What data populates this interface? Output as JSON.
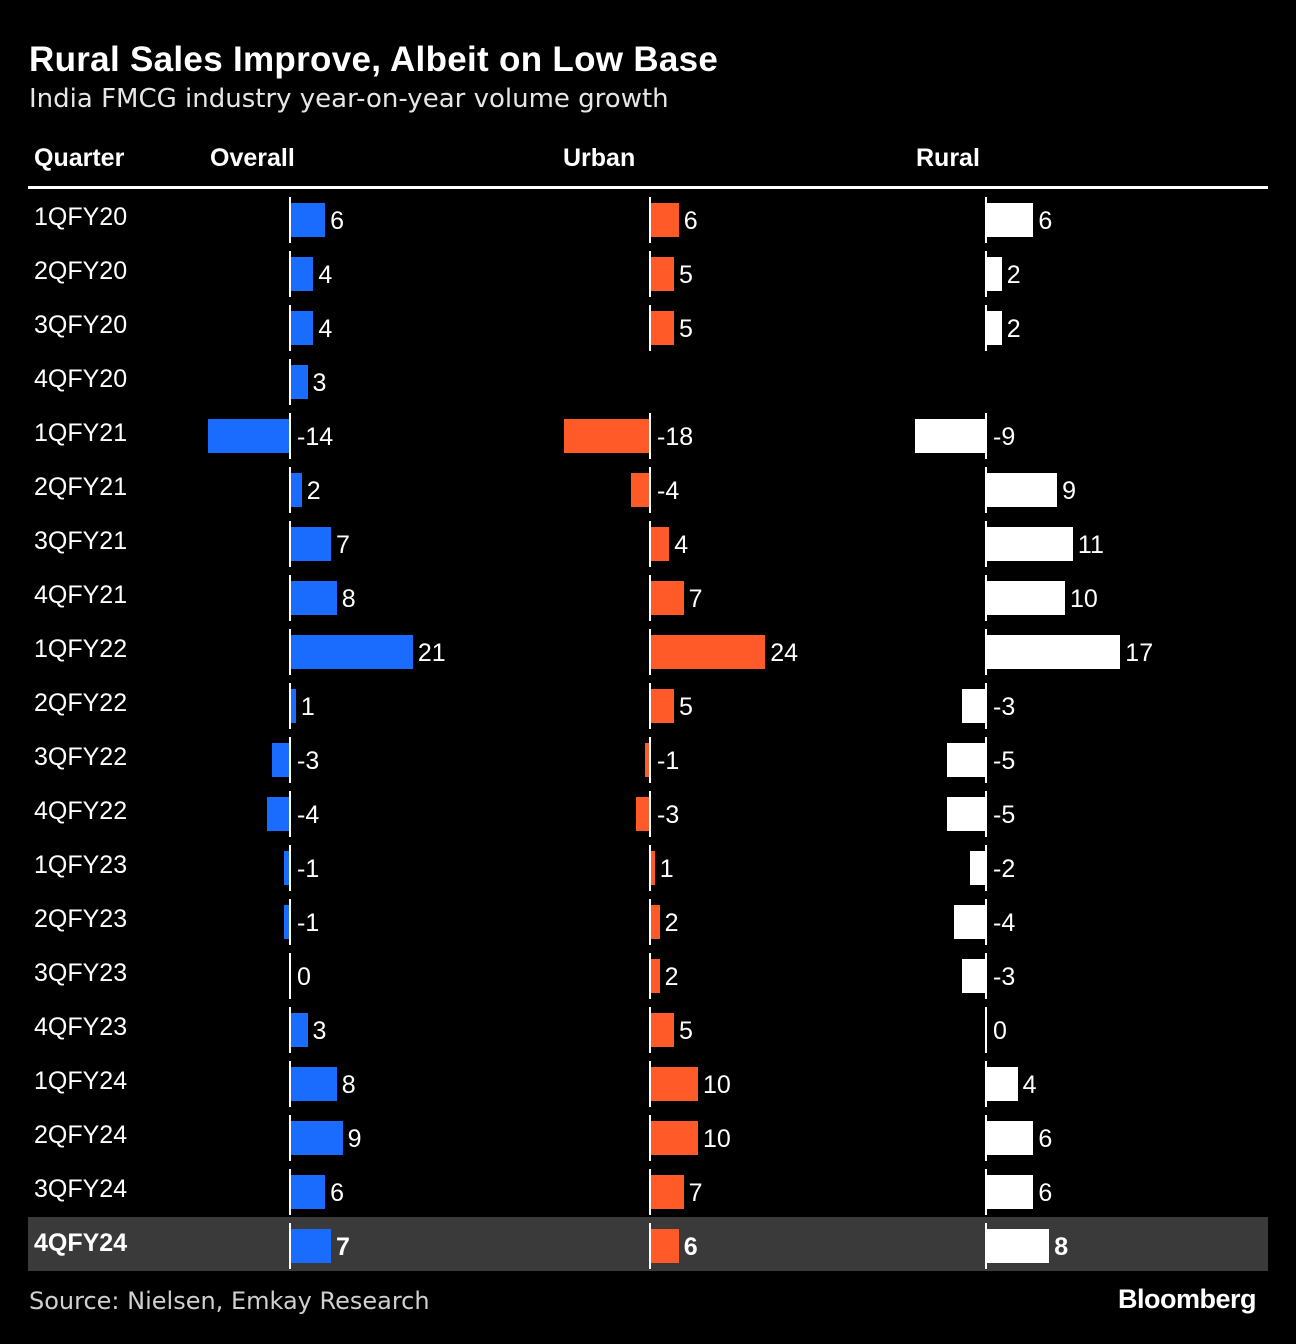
{
  "chart_data": {
    "type": "bar",
    "title": "Rural Sales Improve, Albeit on Low Base",
    "subtitle": "India FMCG industry year-on-year volume growth",
    "columns": {
      "quarter": "Quarter",
      "overall": "Overall",
      "urban": "Urban",
      "rural": "Rural"
    },
    "categories": [
      "1QFY20",
      "2QFY20",
      "3QFY20",
      "4QFY20",
      "1QFY21",
      "2QFY21",
      "3QFY21",
      "4QFY21",
      "1QFY22",
      "2QFY22",
      "3QFY22",
      "4QFY22",
      "1QFY23",
      "2QFY23",
      "3QFY23",
      "4QFY23",
      "1QFY24",
      "2QFY24",
      "3QFY24",
      "4QFY24"
    ],
    "highlighted_category": "4QFY24",
    "series": [
      {
        "name": "Overall",
        "color": "#1a6cff",
        "values": [
          6,
          4,
          4,
          3,
          -14,
          2,
          7,
          8,
          21,
          1,
          -3,
          -4,
          -1,
          -1,
          0,
          3,
          8,
          9,
          6,
          7
        ]
      },
      {
        "name": "Urban",
        "color": "#ff5a28",
        "values": [
          6,
          5,
          5,
          null,
          -18,
          -4,
          4,
          7,
          24,
          5,
          -1,
          -3,
          1,
          2,
          2,
          5,
          10,
          10,
          7,
          6
        ]
      },
      {
        "name": "Rural",
        "color": "#ffffff",
        "values": [
          6,
          2,
          2,
          null,
          -9,
          9,
          11,
          10,
          17,
          -3,
          -5,
          -5,
          -2,
          -4,
          -3,
          0,
          4,
          6,
          6,
          8
        ]
      }
    ]
  },
  "source": "Source: Nielsen, Emkay Research",
  "brand": "Bloomberg"
}
